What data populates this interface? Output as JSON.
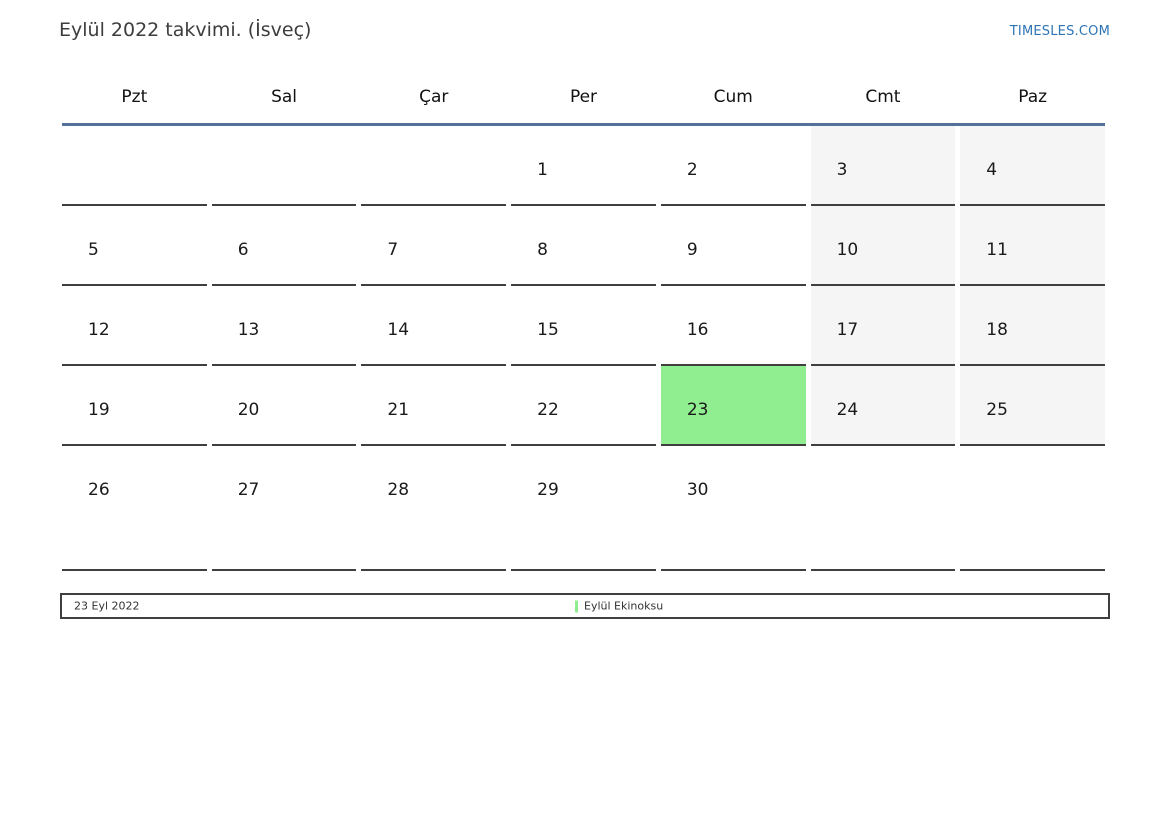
{
  "page": {
    "title": "Eylül 2022 takvimi. (İsveç)",
    "site_link": "TIMESLES.COM"
  },
  "calendar": {
    "day_headers": [
      "Pzt",
      "Sal",
      "Çar",
      "Per",
      "Cum",
      "Cmt",
      "Paz"
    ],
    "highlighted_day": "23",
    "weeks": [
      [
        {
          "label": ""
        },
        {
          "label": ""
        },
        {
          "label": ""
        },
        {
          "label": "1"
        },
        {
          "label": "2"
        },
        {
          "label": "3",
          "weekend": true
        },
        {
          "label": "4",
          "weekend": true
        }
      ],
      [
        {
          "label": "5"
        },
        {
          "label": "6"
        },
        {
          "label": "7"
        },
        {
          "label": "8"
        },
        {
          "label": "9"
        },
        {
          "label": "10",
          "weekend": true
        },
        {
          "label": "11",
          "weekend": true
        }
      ],
      [
        {
          "label": "12"
        },
        {
          "label": "13"
        },
        {
          "label": "14"
        },
        {
          "label": "15"
        },
        {
          "label": "16"
        },
        {
          "label": "17",
          "weekend": true
        },
        {
          "label": "18",
          "weekend": true
        }
      ],
      [
        {
          "label": "19"
        },
        {
          "label": "20"
        },
        {
          "label": "21"
        },
        {
          "label": "22"
        },
        {
          "label": "23",
          "highlight": true
        },
        {
          "label": "24",
          "weekend": true
        },
        {
          "label": "25",
          "weekend": true
        }
      ],
      [
        {
          "label": "26"
        },
        {
          "label": "27"
        },
        {
          "label": "28"
        },
        {
          "label": "29"
        },
        {
          "label": "30"
        },
        {
          "label": ""
        },
        {
          "label": ""
        }
      ]
    ]
  },
  "footer": {
    "date": "23 Eyl 2022",
    "event": "Eylül Ekinoksu",
    "event_marker_icon": "green-bar-icon"
  },
  "colors": {
    "header_rule": "#53719a",
    "link": "#2e74b5",
    "weekend_bg": "#f5f5f5",
    "highlight_bg": "#90ee90",
    "cell_border": "#3f3f3f",
    "event_marker": "#90ee90"
  }
}
